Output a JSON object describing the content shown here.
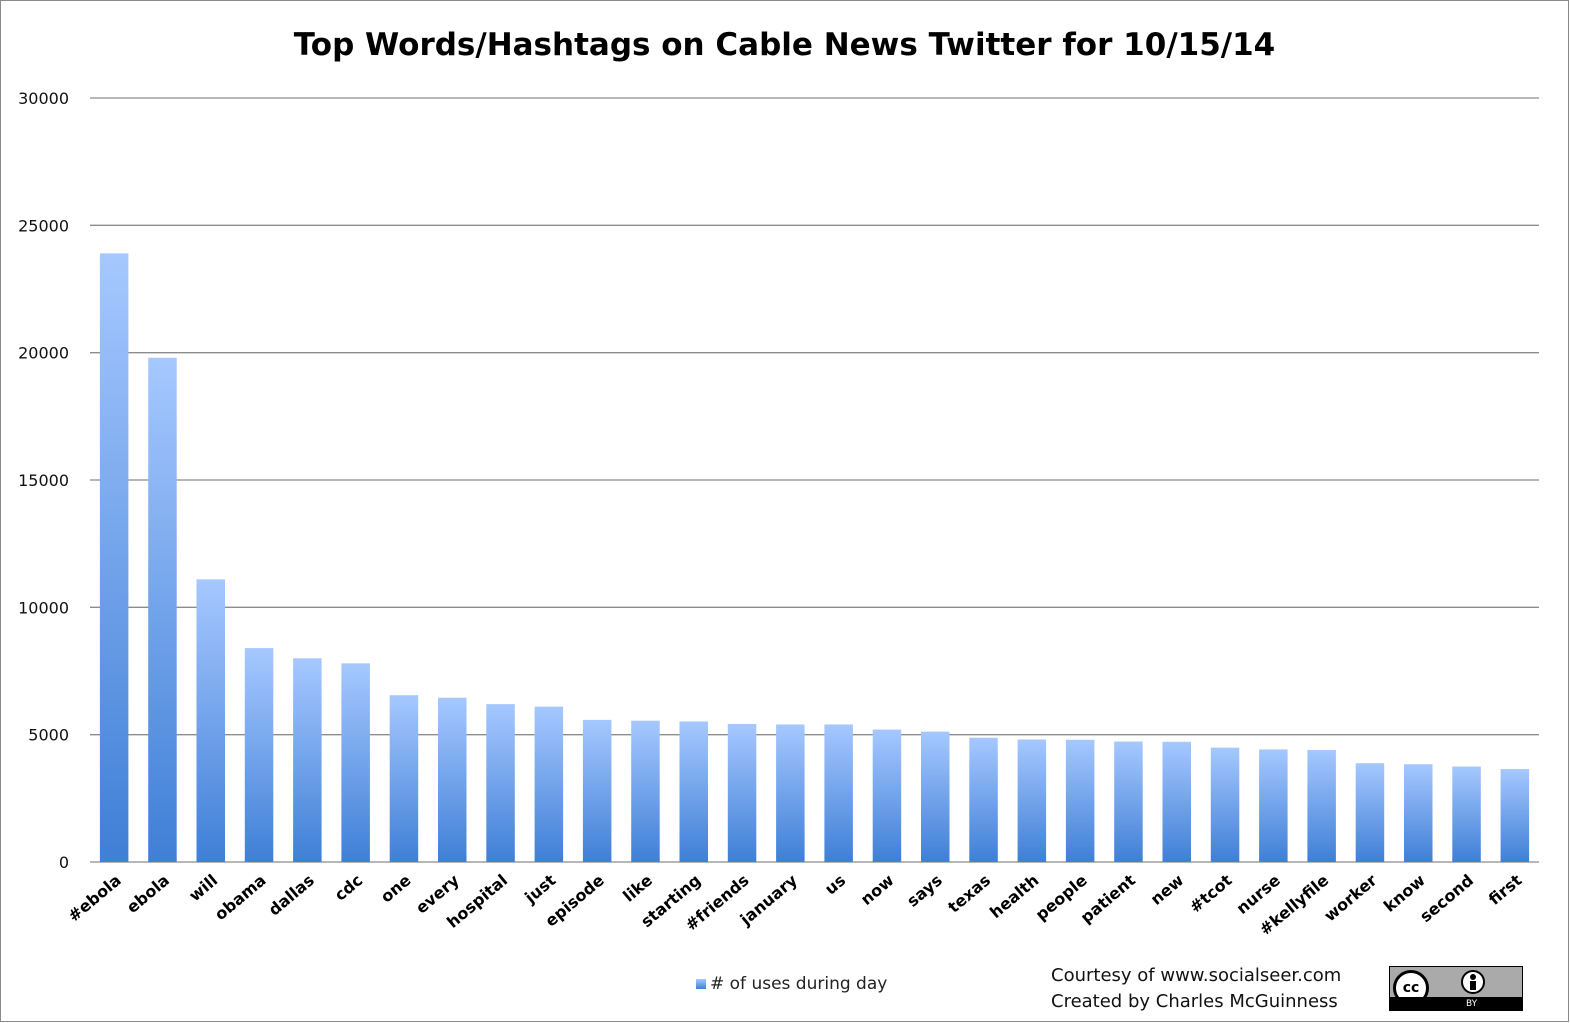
{
  "chart_data": {
    "type": "bar",
    "title": "Top Words/Hashtags on Cable News Twitter for 10/15/14",
    "xlabel": "",
    "ylabel": "",
    "ylim": [
      0,
      30000
    ],
    "yticks": [
      "0",
      "5000",
      "10000",
      "15000",
      "20000",
      "25000",
      "30000"
    ],
    "grid": true,
    "legend_position": "bottom",
    "categories": [
      "#ebola",
      "ebola",
      "will",
      "obama",
      "dallas",
      "cdc",
      "one",
      "every",
      "hospital",
      "just",
      "episode",
      "like",
      "starting",
      "#friends",
      "january",
      "us",
      "now",
      "says",
      "texas",
      "health",
      "people",
      "patient",
      "new",
      "#tcot",
      "nurse",
      "#kellyfile",
      "worker",
      "know",
      "second",
      "first"
    ],
    "series": [
      {
        "name": "# of uses during day",
        "values": [
          23900,
          19800,
          11100,
          8400,
          8000,
          7800,
          6550,
          6450,
          6200,
          6100,
          5580,
          5550,
          5520,
          5420,
          5400,
          5400,
          5200,
          5120,
          4880,
          4810,
          4800,
          4730,
          4720,
          4490,
          4420,
          4400,
          3880,
          3840,
          3750,
          3650
        ]
      }
    ],
    "colors": {
      "bar_top": "#a6c8ff",
      "bar_bottom": "#3f7fd6",
      "gridline": "#8c8c8c"
    }
  },
  "credits": {
    "line1": "Courtesy of www.socialseer.com",
    "line2": "Created by Charles McGuinness"
  },
  "license_badge": {
    "cc_text": "cc",
    "by_text": "BY"
  }
}
